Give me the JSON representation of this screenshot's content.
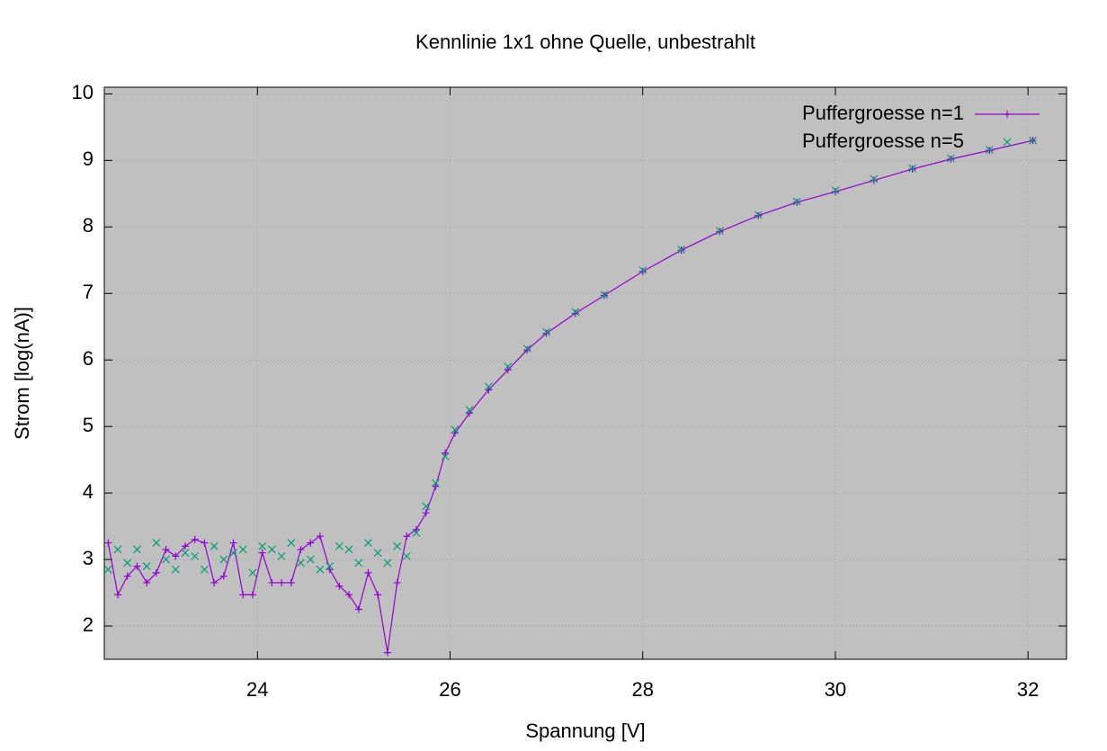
{
  "chart_data": {
    "type": "line",
    "title": "Kennlinie 1x1 ohne Quelle, unbestrahlt",
    "x_label": "Spannung [V]",
    "y_label": "Strom [log(nA)]",
    "xlim": [
      22.41,
      32.4
    ],
    "ylim": [
      1.5,
      10.1
    ],
    "xticks": [
      24,
      26,
      28,
      30,
      32
    ],
    "yticks": [
      2,
      3,
      4,
      5,
      6,
      7,
      8,
      9,
      10
    ],
    "grid": true,
    "background": "#c0c0c0",
    "legend_position": "top-right",
    "series": [
      {
        "name": "Puffergroesse n=1",
        "color": "#9400d3",
        "style": "linespoints",
        "marker": "plus",
        "x": [
          22.45,
          22.55,
          22.65,
          22.75,
          22.85,
          22.95,
          23.05,
          23.15,
          23.25,
          23.35,
          23.45,
          23.55,
          23.65,
          23.75,
          23.85,
          23.95,
          24.05,
          24.15,
          24.25,
          24.35,
          24.45,
          24.55,
          24.65,
          24.75,
          24.85,
          24.95,
          25.05,
          25.15,
          25.25,
          25.35,
          25.45,
          25.55,
          25.65,
          25.75,
          25.85,
          25.95,
          26.05,
          26.2,
          26.4,
          26.6,
          26.8,
          27.0,
          27.3,
          27.6,
          28.0,
          28.4,
          28.8,
          29.2,
          29.6,
          30.0,
          30.4,
          30.8,
          31.2,
          31.6,
          32.05
        ],
        "values": [
          3.25,
          2.47,
          2.75,
          2.9,
          2.65,
          2.8,
          3.15,
          3.05,
          3.2,
          3.3,
          3.25,
          2.65,
          2.75,
          3.25,
          2.47,
          2.47,
          3.1,
          2.65,
          2.65,
          2.65,
          3.15,
          3.25,
          3.35,
          2.85,
          2.6,
          2.47,
          2.25,
          2.8,
          2.47,
          1.6,
          2.65,
          3.35,
          3.45,
          3.7,
          4.1,
          4.6,
          4.9,
          5.2,
          5.55,
          5.85,
          6.15,
          6.4,
          6.7,
          6.97,
          7.33,
          7.65,
          7.93,
          8.17,
          8.37,
          8.53,
          8.7,
          8.87,
          9.02,
          9.15,
          9.3
        ]
      },
      {
        "name": "Puffergroesse n=5",
        "color": "#009e73",
        "style": "points",
        "marker": "cross",
        "x": [
          22.45,
          22.55,
          22.65,
          22.75,
          22.85,
          22.95,
          23.05,
          23.15,
          23.25,
          23.35,
          23.45,
          23.55,
          23.65,
          23.75,
          23.85,
          23.95,
          24.05,
          24.15,
          24.25,
          24.35,
          24.45,
          24.55,
          24.65,
          24.75,
          24.85,
          24.95,
          25.05,
          25.15,
          25.25,
          25.35,
          25.45,
          25.55,
          25.65,
          25.75,
          25.85,
          25.95,
          26.05,
          26.2,
          26.4,
          26.6,
          26.8,
          27.0,
          27.3,
          27.6,
          28.0,
          28.4,
          28.8,
          29.2,
          29.6,
          30.0,
          30.4,
          30.8,
          31.2,
          31.6,
          32.05
        ],
        "values": [
          2.85,
          3.15,
          2.95,
          3.15,
          2.9,
          3.25,
          3.0,
          2.85,
          3.1,
          3.05,
          2.85,
          3.2,
          3.0,
          3.1,
          3.15,
          2.8,
          3.2,
          3.15,
          3.05,
          3.25,
          2.95,
          3.0,
          2.85,
          2.9,
          3.2,
          3.15,
          2.95,
          3.25,
          3.1,
          2.95,
          3.2,
          3.05,
          3.4,
          3.8,
          4.15,
          4.55,
          4.95,
          5.25,
          5.6,
          5.9,
          6.17,
          6.42,
          6.72,
          6.98,
          7.35,
          7.66,
          7.94,
          8.18,
          8.38,
          8.55,
          8.72,
          8.88,
          9.03,
          9.16,
          9.3
        ]
      }
    ]
  }
}
